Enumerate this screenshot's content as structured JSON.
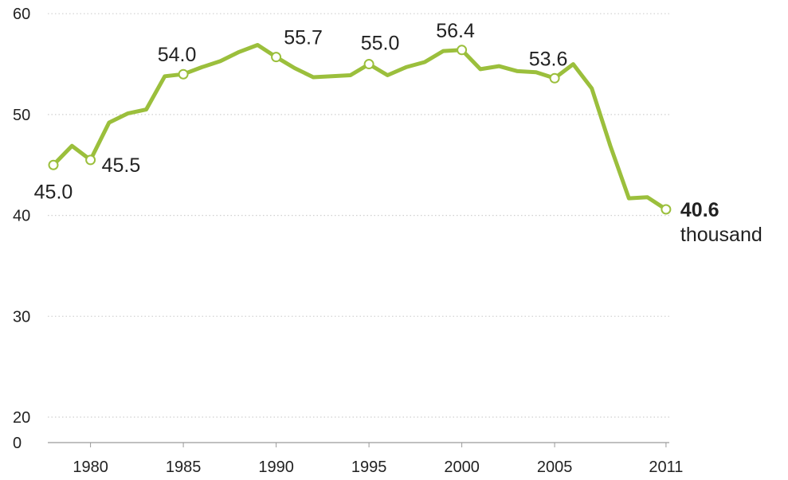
{
  "chart_data": {
    "type": "line",
    "title": "",
    "xlabel": "",
    "ylabel": "",
    "ylim": [
      0,
      60
    ],
    "y_axis_break": true,
    "y_ticks": [
      0,
      20,
      30,
      40,
      50,
      60
    ],
    "x_ticks": [
      1980,
      1985,
      1990,
      1995,
      2000,
      2005,
      2011
    ],
    "grid": "horizontal dotted",
    "color": "#9bbf3c",
    "series": [
      {
        "points": [
          [
            1978,
            45.0
          ],
          [
            1979,
            46.9
          ],
          [
            1980,
            45.5
          ],
          [
            1981,
            49.2
          ],
          [
            1982,
            50.1
          ],
          [
            1983,
            50.5
          ],
          [
            1984,
            53.8
          ],
          [
            1985,
            54.0
          ],
          [
            1986,
            54.7
          ],
          [
            1987,
            55.3
          ],
          [
            1988,
            56.2
          ],
          [
            1989,
            56.9
          ],
          [
            1990,
            55.7
          ],
          [
            1991,
            54.6
          ],
          [
            1992,
            53.7
          ],
          [
            1993,
            53.8
          ],
          [
            1994,
            53.9
          ],
          [
            1995,
            55.0
          ],
          [
            1996,
            53.9
          ],
          [
            1997,
            54.7
          ],
          [
            1998,
            55.2
          ],
          [
            1999,
            56.3
          ],
          [
            2000,
            56.4
          ],
          [
            2001,
            54.5
          ],
          [
            2002,
            54.8
          ],
          [
            2003,
            54.3
          ],
          [
            2004,
            54.2
          ],
          [
            2005,
            53.6
          ],
          [
            2006,
            55.0
          ],
          [
            2007,
            52.6
          ],
          [
            2008,
            46.9
          ],
          [
            2009,
            41.7
          ],
          [
            2010,
            41.8
          ],
          [
            2011,
            40.6
          ]
        ]
      }
    ],
    "annotations": [
      {
        "x": 1978,
        "y": 45.0,
        "text": "45.0",
        "pos": "below"
      },
      {
        "x": 1980,
        "y": 45.5,
        "text": "45.5",
        "pos": "right-below"
      },
      {
        "x": 1985,
        "y": 54.0,
        "text": "54.0",
        "pos": "above-left"
      },
      {
        "x": 1990,
        "y": 55.7,
        "text": "55.7",
        "pos": "above-right"
      },
      {
        "x": 1995,
        "y": 55.0,
        "text": "55.0",
        "pos": "above"
      },
      {
        "x": 2000,
        "y": 56.4,
        "text": "56.4",
        "pos": "above-left"
      },
      {
        "x": 2005,
        "y": 53.6,
        "text": "53.6",
        "pos": "above-left"
      },
      {
        "x": 2011,
        "y": 40.6,
        "text": "40.6",
        "pos": "right",
        "bold": true,
        "unit": "thousand"
      }
    ]
  }
}
